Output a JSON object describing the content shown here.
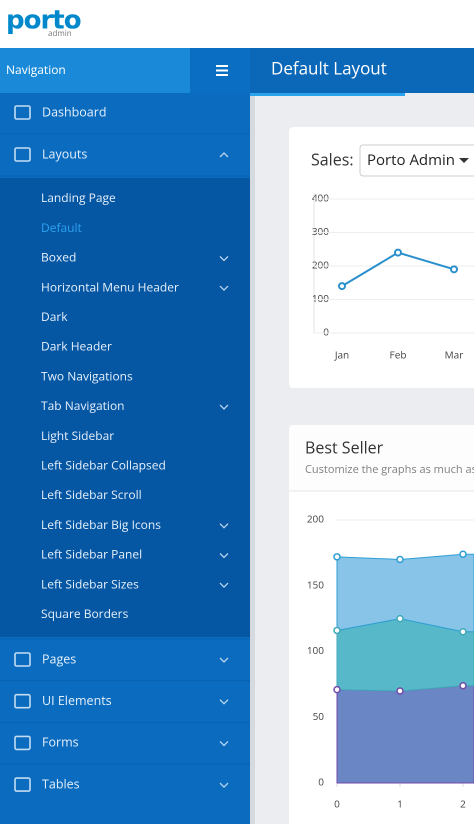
{
  "header": {
    "logo": "porto",
    "logo_sub": "admin"
  },
  "nav": {
    "title": "Navigation"
  },
  "page": {
    "title": "Default Layout"
  },
  "sidebar": {
    "items_top": [
      {
        "label": "Dashboard",
        "chevron": false
      },
      {
        "label": "Layouts",
        "chevron": true,
        "open": true
      }
    ],
    "submenu": [
      {
        "label": "Landing Page",
        "chevron": false
      },
      {
        "label": "Default",
        "chevron": false,
        "active": true
      },
      {
        "label": "Boxed",
        "chevron": true
      },
      {
        "label": "Horizontal Menu Header",
        "chevron": true
      },
      {
        "label": "Dark",
        "chevron": false
      },
      {
        "label": "Dark Header",
        "chevron": false
      },
      {
        "label": "Two Navigations",
        "chevron": false
      },
      {
        "label": "Tab Navigation",
        "chevron": true
      },
      {
        "label": "Light Sidebar",
        "chevron": false
      },
      {
        "label": "Left Sidebar Collapsed",
        "chevron": false
      },
      {
        "label": "Left Sidebar Scroll",
        "chevron": false
      },
      {
        "label": "Left Sidebar Big Icons",
        "chevron": true
      },
      {
        "label": "Left Sidebar Panel",
        "chevron": true
      },
      {
        "label": "Left Sidebar Sizes",
        "chevron": true
      },
      {
        "label": "Square Borders",
        "chevron": false
      }
    ],
    "items_bottom": [
      {
        "label": "Pages",
        "chevron": true
      },
      {
        "label": "UI Elements",
        "chevron": true
      },
      {
        "label": "Forms",
        "chevron": true
      },
      {
        "label": "Tables",
        "chevron": true
      }
    ]
  },
  "sales_card": {
    "label": "Sales:",
    "select": "Porto Admin",
    "chart": {
      "type": "line",
      "categories": [
        "Jan",
        "Feb",
        "Mar"
      ],
      "values": [
        140,
        240,
        190
      ],
      "color": "#2a8fcd",
      "ylim": [
        0,
        400
      ],
      "yticks": [
        0,
        100,
        200,
        300,
        400
      ],
      "grid": true
    }
  },
  "best_seller": {
    "title": "Best Seller",
    "subtitle": "Customize the graphs as much as you want",
    "chart": {
      "type": "area",
      "x": [
        0,
        1,
        2
      ],
      "xlim": [
        0,
        3
      ],
      "xticks": [
        0,
        1,
        2
      ],
      "ylim": [
        0,
        200
      ],
      "yticks": [
        0,
        50,
        100,
        150,
        200
      ],
      "grid": true,
      "stacked": true,
      "series": [
        {
          "color": "#6a86c5",
          "point_color": "#734ba9",
          "values": [
            71,
            70,
            74
          ]
        },
        {
          "color": "#57b8c9",
          "point_color": "#3fa9b8",
          "values": [
            45,
            55,
            41
          ]
        },
        {
          "color": "#88c4e8",
          "point_color": "#2f9fd4",
          "values": [
            56,
            45,
            59
          ]
        }
      ]
    }
  }
}
